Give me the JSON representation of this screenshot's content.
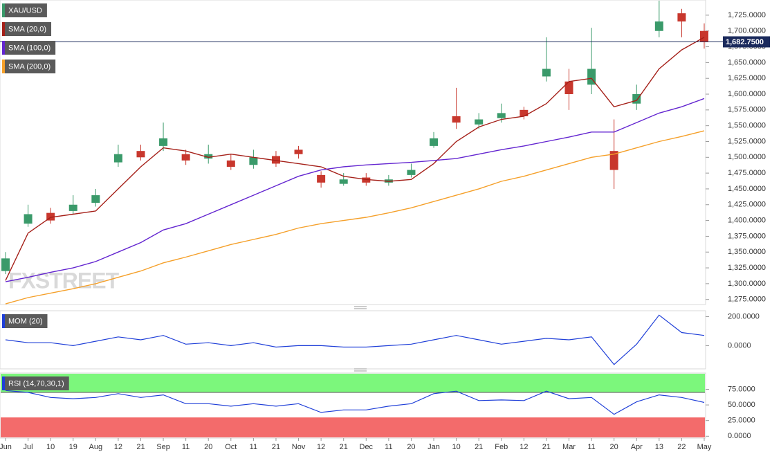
{
  "watermark": "FXSTREET",
  "chart_data": [
    {
      "type": "candlestick",
      "symbol": "XAU/USD",
      "up_color": "#3a9a6a",
      "down_color": "#c8372d",
      "categories": [
        "Jun",
        "Jul",
        "10",
        "19",
        "Aug",
        "12",
        "21",
        "Sep",
        "11",
        "20",
        "Oct",
        "11",
        "21",
        "Nov",
        "12",
        "21",
        "Dec",
        "11",
        "20",
        "Jan",
        "10",
        "21",
        "Feb",
        "12",
        "21",
        "Mar",
        "11",
        "20",
        "Apr",
        "13",
        "22",
        "May"
      ],
      "open": [
        1320,
        1395,
        1412,
        1415,
        1428,
        1492,
        1510,
        1518,
        1505,
        1498,
        1495,
        1488,
        1502,
        1512,
        1472,
        1458,
        1468,
        1460,
        1472,
        1518,
        1565,
        1552,
        1562,
        1575,
        1628,
        1620,
        1615,
        1510,
        1585,
        1700,
        1728,
        1700
      ],
      "high": [
        1350,
        1425,
        1420,
        1440,
        1450,
        1520,
        1520,
        1555,
        1512,
        1520,
        1505,
        1512,
        1510,
        1518,
        1478,
        1475,
        1475,
        1472,
        1490,
        1540,
        1610,
        1570,
        1585,
        1580,
        1690,
        1640,
        1705,
        1560,
        1615,
        1748,
        1735,
        1712
      ],
      "low": [
        1315,
        1390,
        1395,
        1410,
        1422,
        1485,
        1495,
        1510,
        1488,
        1490,
        1480,
        1482,
        1485,
        1498,
        1452,
        1455,
        1455,
        1455,
        1468,
        1515,
        1545,
        1545,
        1555,
        1560,
        1620,
        1575,
        1600,
        1450,
        1575,
        1690,
        1690,
        1672
      ],
      "close": [
        1340,
        1410,
        1400,
        1425,
        1440,
        1505,
        1500,
        1530,
        1495,
        1505,
        1485,
        1500,
        1490,
        1505,
        1460,
        1465,
        1460,
        1465,
        1480,
        1530,
        1555,
        1560,
        1570,
        1565,
        1640,
        1600,
        1640,
        1480,
        1600,
        1715,
        1715,
        1683
      ],
      "series": [
        {
          "name": "SMA (20,0)",
          "color": "#a52019",
          "values": [
            1305,
            1380,
            1405,
            1410,
            1415,
            1450,
            1485,
            1515,
            1510,
            1500,
            1505,
            1500,
            1495,
            1490,
            1485,
            1470,
            1465,
            1462,
            1465,
            1490,
            1525,
            1548,
            1560,
            1565,
            1585,
            1620,
            1625,
            1580,
            1590,
            1640,
            1670,
            1690
          ]
        },
        {
          "name": "SMA (100,0)",
          "color": "#6325d0",
          "values": [
            1303,
            1310,
            1318,
            1325,
            1335,
            1350,
            1365,
            1385,
            1395,
            1410,
            1425,
            1440,
            1455,
            1470,
            1480,
            1485,
            1488,
            1490,
            1492,
            1495,
            1498,
            1505,
            1512,
            1518,
            1525,
            1532,
            1540,
            1540,
            1555,
            1570,
            1580,
            1593
          ]
        },
        {
          "name": "SMA (200,0)",
          "color": "#f5a02a",
          "values": [
            1268,
            1278,
            1285,
            1292,
            1300,
            1310,
            1320,
            1333,
            1342,
            1352,
            1362,
            1370,
            1378,
            1388,
            1395,
            1400,
            1405,
            1412,
            1420,
            1430,
            1440,
            1450,
            1462,
            1470,
            1480,
            1490,
            1500,
            1505,
            1515,
            1525,
            1533,
            1542
          ]
        }
      ],
      "price_line": {
        "value": 1682.75,
        "label": "1,682.7500"
      },
      "ylim": [
        1267,
        1749
      ],
      "yticks": [
        {
          "value": 1275,
          "label": "1,275.0000"
        },
        {
          "value": 1300,
          "label": "1,300.0000"
        },
        {
          "value": 1325,
          "label": "1,325.0000"
        },
        {
          "value": 1350,
          "label": "1,350.0000"
        },
        {
          "value": 1375,
          "label": "1,375.0000"
        },
        {
          "value": 1400,
          "label": "1,400.0000"
        },
        {
          "value": 1425,
          "label": "1,425.0000"
        },
        {
          "value": 1450,
          "label": "1,450.0000"
        },
        {
          "value": 1475,
          "label": "1,475.0000"
        },
        {
          "value": 1500,
          "label": "1,500.0000"
        },
        {
          "value": 1525,
          "label": "1,525.0000"
        },
        {
          "value": 1550,
          "label": "1,550.0000"
        },
        {
          "value": 1575,
          "label": "1,575.0000"
        },
        {
          "value": 1600,
          "label": "1,600.0000"
        },
        {
          "value": 1625,
          "label": "1,625.0000"
        },
        {
          "value": 1650,
          "label": "1,650.0000"
        },
        {
          "value": 1675,
          "label": "1,675.0000"
        },
        {
          "value": 1700,
          "label": "1,700.0000"
        },
        {
          "value": 1725,
          "label": "1,725.0000"
        }
      ]
    },
    {
      "type": "line",
      "series": [
        {
          "name": "MOM (20)",
          "color": "#1f3fd8",
          "values": [
            40,
            20,
            20,
            0,
            30,
            60,
            40,
            70,
            10,
            20,
            0,
            20,
            -10,
            0,
            0,
            -10,
            -10,
            0,
            10,
            40,
            70,
            40,
            10,
            30,
            50,
            40,
            60,
            -130,
            10,
            210,
            90,
            70
          ]
        }
      ],
      "ylim": [
        -160,
        240
      ],
      "yticks": [
        {
          "value": 0,
          "label": "0.0000"
        },
        {
          "value": 200,
          "label": "200.0000"
        }
      ]
    },
    {
      "type": "line",
      "overbought": 70,
      "oversold": 30,
      "overbought_color": "#7cf77c",
      "oversold_color": "#f36b6b",
      "series": [
        {
          "name": "RSI (14,70,30,1)",
          "color": "#1f3fd8",
          "values": [
            73,
            70,
            62,
            60,
            62,
            68,
            62,
            66,
            52,
            52,
            48,
            52,
            48,
            52,
            38,
            42,
            42,
            48,
            52,
            68,
            72,
            57,
            58,
            57,
            72,
            60,
            62,
            35,
            55,
            66,
            62,
            54
          ]
        }
      ],
      "ylim": [
        -3,
        101
      ],
      "yticks": [
        {
          "value": 0,
          "label": "0.0000"
        },
        {
          "value": 25,
          "label": "25.0000"
        },
        {
          "value": 50,
          "label": "50.0000"
        },
        {
          "value": 75,
          "label": "75.0000"
        }
      ]
    }
  ]
}
